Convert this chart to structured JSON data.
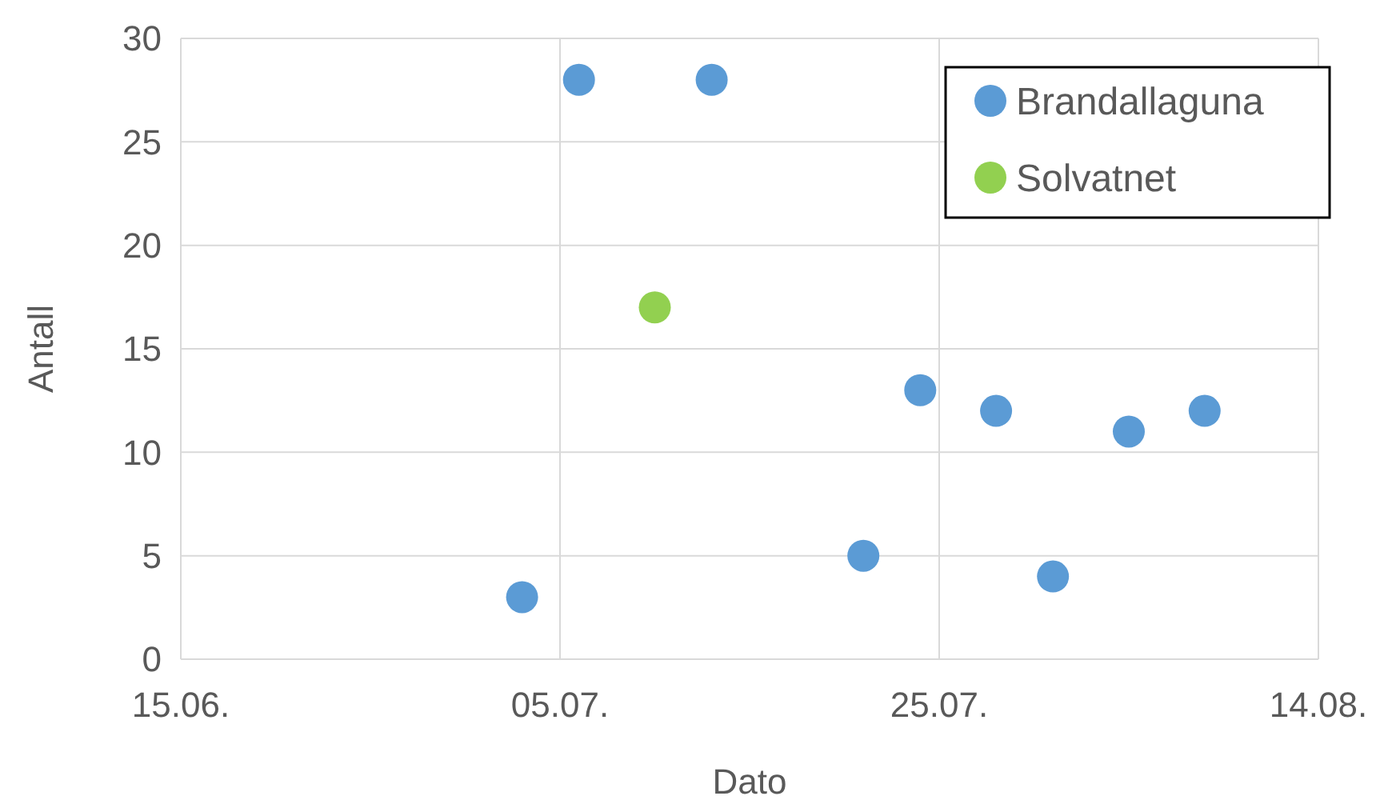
{
  "chart_data": {
    "type": "scatter",
    "xlabel": "Dato",
    "ylabel": "Antall",
    "xlim": [
      "--06-15",
      "--08-14"
    ],
    "xticks": [
      {
        "value": "--06-15",
        "label": "15.06."
      },
      {
        "value": "--07-05",
        "label": "05.07."
      },
      {
        "value": "--07-25",
        "label": "25.07."
      },
      {
        "value": "--08-14",
        "label": "14.08."
      }
    ],
    "ylim": [
      0,
      30
    ],
    "yticks": [
      0,
      5,
      10,
      15,
      20,
      25,
      30
    ],
    "grid": true,
    "legend": "top right",
    "marker": "circle",
    "series": [
      {
        "name": "Brandallaguna",
        "color": "#5b9bd5",
        "x": [
          "--07-03",
          "--07-06",
          "--07-13",
          "--07-21",
          "--07-24",
          "--07-28",
          "--07-31",
          "--08-04",
          "--08-08"
        ],
        "values": [
          3,
          28,
          28,
          5,
          13,
          12,
          4,
          11,
          12
        ]
      },
      {
        "name": "Solvatnet",
        "color": "#92d050",
        "x": [
          "--07-10"
        ],
        "values": [
          17
        ]
      }
    ]
  }
}
